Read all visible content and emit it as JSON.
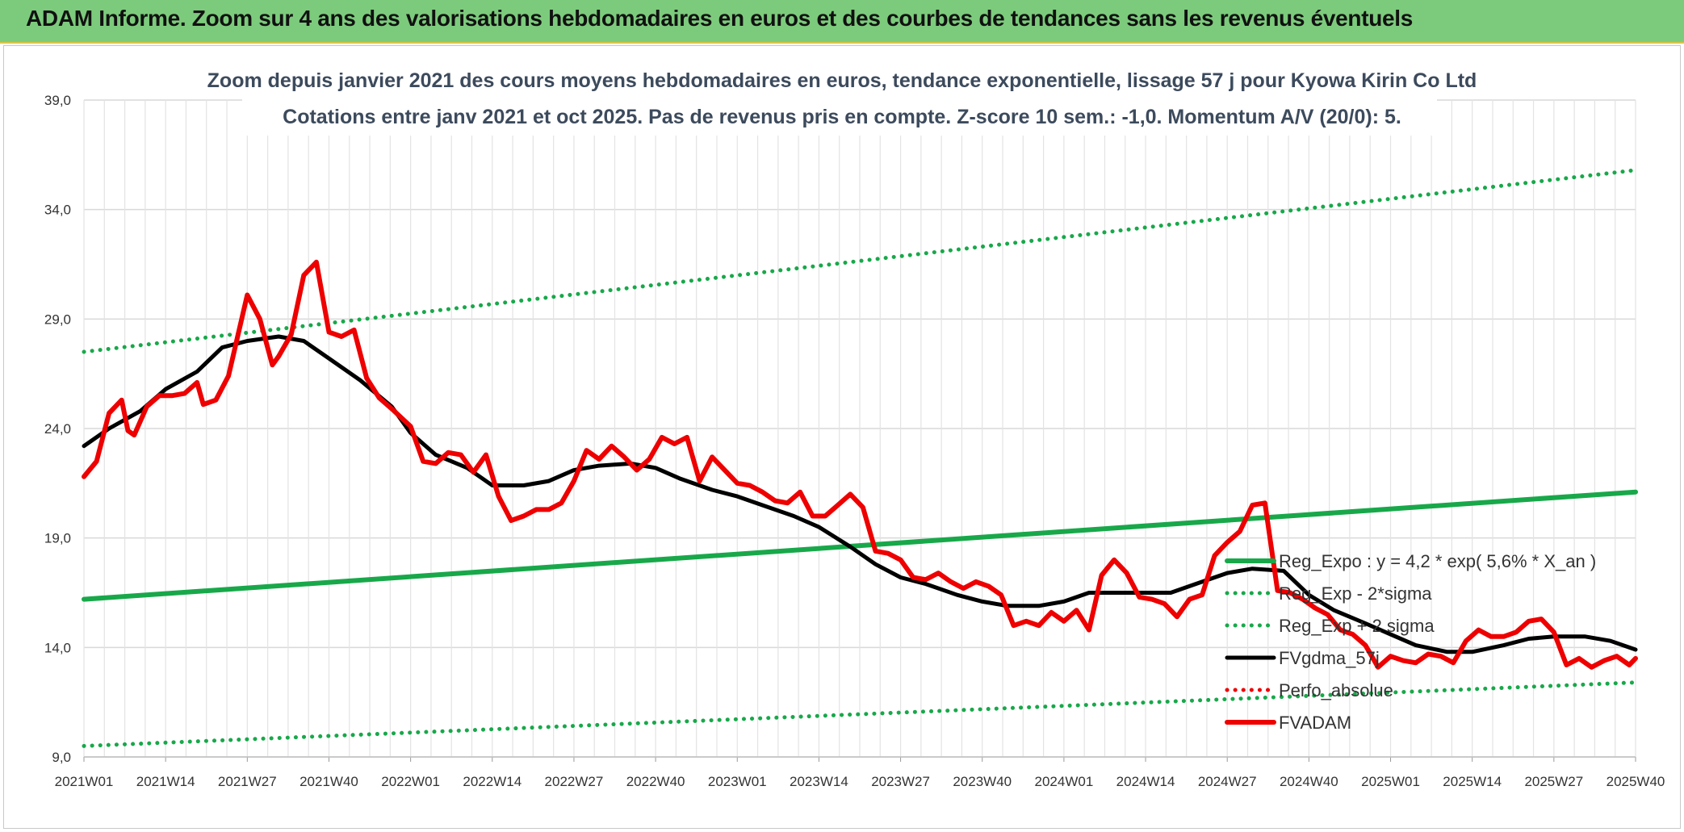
{
  "banner": {
    "title": "ADAM Informe. Zoom sur 4 ans des valorisations hebdomadaires en euros et des courbes de tendances sans les revenus éventuels"
  },
  "colors": {
    "banner_bg": "#7ccb7c",
    "trend_green": "#18a84a",
    "price_red": "#ee0000",
    "smooth_black": "#000000",
    "perfo_red": "#ee0000"
  },
  "chart_data": {
    "type": "line",
    "title": "Zoom depuis janvier 2021 des cours moyens hebdomadaires en euros, tendance exponentielle, lissage 57 j pour Kyowa Kirin Co Ltd",
    "subtitle": "Cotations entre janv 2021 et oct 2025. Pas de revenus pris en compte. Z-score 10 sem.: -1,0. Momentum A/V (20/0): 5.",
    "ylim": [
      9,
      39
    ],
    "yticks": [
      "39,0",
      "34,0",
      "29,0",
      "24,0",
      "19,0",
      "14,0",
      "9,0"
    ],
    "ytick_values": [
      39,
      34,
      29,
      24,
      19,
      14,
      9
    ],
    "xticks": [
      "2021W01",
      "2021W14",
      "2021W27",
      "2021W40",
      "2022W01",
      "2022W14",
      "2022W27",
      "2022W40",
      "2023W01",
      "2023W14",
      "2023W27",
      "2023W40",
      "2024W01",
      "2024W14",
      "2024W27",
      "2024W40",
      "2025W01",
      "2025W14",
      "2025W27",
      "2025W40"
    ],
    "grid": true,
    "legend_position": "right",
    "series": [
      {
        "name": "Reg_Expo : y = 4,2 * exp( 5,6% *  X_an )",
        "style": "solid-thick",
        "color": "#18a84a",
        "x": [
          "2021W01",
          "2025W40"
        ],
        "y": [
          16.2,
          21.1
        ]
      },
      {
        "name": "Reg_Exp - 2*sigma",
        "style": "dotted",
        "color": "#18a84a",
        "x": [
          "2021W01",
          "2025W40"
        ],
        "y": [
          9.5,
          12.4
        ]
      },
      {
        "name": "Reg_Exp + 2 sigma",
        "style": "dotted",
        "color": "#18a84a",
        "x": [
          "2021W01",
          "2025W40"
        ],
        "y": [
          27.5,
          35.8
        ]
      },
      {
        "name": "FVgdma_57j",
        "style": "solid",
        "color": "#000000",
        "x": [
          "2021W01",
          "2021W05",
          "2021W10",
          "2021W14",
          "2021W19",
          "2021W23",
          "2021W27",
          "2021W32",
          "2021W36",
          "2021W40",
          "2021W45",
          "2021W50",
          "2022W01",
          "2022W05",
          "2022W10",
          "2022W14",
          "2022W19",
          "2022W23",
          "2022W27",
          "2022W31",
          "2022W36",
          "2022W40",
          "2022W44",
          "2022W49",
          "2023W01",
          "2023W05",
          "2023W10",
          "2023W14",
          "2023W19",
          "2023W23",
          "2023W27",
          "2023W31",
          "2023W36",
          "2023W40",
          "2023W44",
          "2023W49",
          "2024W01",
          "2024W05",
          "2024W10",
          "2024W14",
          "2024W18",
          "2024W23",
          "2024W27",
          "2024W31",
          "2024W36",
          "2024W40",
          "2024W44",
          "2024W49",
          "2025W01",
          "2025W05",
          "2025W10",
          "2025W14",
          "2025W19",
          "2025W23",
          "2025W27",
          "2025W32",
          "2025W36",
          "2025W40"
        ],
        "y": [
          23.2,
          24.0,
          24.8,
          25.8,
          26.6,
          27.7,
          28.0,
          28.2,
          28.0,
          27.2,
          26.2,
          25.0,
          23.8,
          22.8,
          22.2,
          21.4,
          21.4,
          21.6,
          22.1,
          22.3,
          22.4,
          22.2,
          21.7,
          21.2,
          20.9,
          20.5,
          20.0,
          19.5,
          18.6,
          17.8,
          17.2,
          16.9,
          16.4,
          16.1,
          15.9,
          15.9,
          16.1,
          16.5,
          16.5,
          16.5,
          16.5,
          17.0,
          17.4,
          17.6,
          17.5,
          16.4,
          15.7,
          15.1,
          14.6,
          14.1,
          13.8,
          13.8,
          14.1,
          14.4,
          14.5,
          14.5,
          14.3,
          13.9
        ]
      },
      {
        "name": "Perfo_absolue",
        "style": "dotted",
        "color": "#ee0000",
        "x": [],
        "y": []
      },
      {
        "name": "FVADAM",
        "style": "solid-thick",
        "color": "#ee0000",
        "x": [
          "2021W01",
          "2021W03",
          "2021W05",
          "2021W07",
          "2021W08",
          "2021W09",
          "2021W11",
          "2021W13",
          "2021W15",
          "2021W17",
          "2021W19",
          "2021W20",
          "2021W22",
          "2021W24",
          "2021W27",
          "2021W29",
          "2021W31",
          "2021W32",
          "2021W34",
          "2021W36",
          "2021W38",
          "2021W40",
          "2021W42",
          "2021W44",
          "2021W46",
          "2021W48",
          "2021W50",
          "2022W01",
          "2022W03",
          "2022W05",
          "2022W07",
          "2022W09",
          "2022W11",
          "2022W13",
          "2022W15",
          "2022W17",
          "2022W19",
          "2022W21",
          "2022W23",
          "2022W25",
          "2022W27",
          "2022W29",
          "2022W31",
          "2022W33",
          "2022W35",
          "2022W37",
          "2022W39",
          "2022W41",
          "2022W43",
          "2022W45",
          "2022W47",
          "2022W49",
          "2023W01",
          "2023W03",
          "2023W05",
          "2023W07",
          "2023W09",
          "2023W11",
          "2023W13",
          "2023W15",
          "2023W17",
          "2023W19",
          "2023W21",
          "2023W23",
          "2023W25",
          "2023W27",
          "2023W29",
          "2023W31",
          "2023W33",
          "2023W35",
          "2023W37",
          "2023W39",
          "2023W41",
          "2023W43",
          "2023W45",
          "2023W47",
          "2023W49",
          "2023W51",
          "2024W01",
          "2024W03",
          "2024W05",
          "2024W07",
          "2024W09",
          "2024W11",
          "2024W13",
          "2024W15",
          "2024W17",
          "2024W19",
          "2024W21",
          "2024W23",
          "2024W25",
          "2024W27",
          "2024W29",
          "2024W31",
          "2024W33",
          "2024W35",
          "2024W37",
          "2024W39",
          "2024W41",
          "2024W43",
          "2024W45",
          "2024W47",
          "2024W49",
          "2024W51",
          "2025W01",
          "2025W03",
          "2025W05",
          "2025W07",
          "2025W09",
          "2025W11",
          "2025W13",
          "2025W15",
          "2025W17",
          "2025W19",
          "2025W21",
          "2025W23",
          "2025W25",
          "2025W27",
          "2025W29",
          "2025W31",
          "2025W33",
          "2025W35",
          "2025W37",
          "2025W39",
          "2025W40"
        ],
        "y": [
          21.8,
          22.5,
          24.7,
          25.3,
          23.9,
          23.7,
          25.0,
          25.5,
          25.5,
          25.6,
          26.1,
          25.1,
          25.3,
          26.4,
          30.1,
          29.0,
          26.9,
          27.3,
          28.3,
          31.0,
          31.6,
          28.4,
          28.2,
          28.5,
          26.3,
          25.4,
          24.9,
          24.1,
          22.5,
          22.4,
          22.9,
          22.8,
          22.0,
          22.8,
          20.9,
          19.8,
          20.0,
          20.3,
          20.3,
          20.6,
          21.6,
          23.0,
          22.6,
          23.2,
          22.7,
          22.1,
          22.6,
          23.6,
          23.3,
          23.6,
          21.6,
          22.7,
          21.5,
          21.4,
          21.1,
          20.7,
          20.6,
          21.1,
          20.0,
          20.0,
          20.5,
          21.0,
          20.4,
          18.4,
          18.3,
          18.0,
          17.2,
          17.1,
          17.4,
          17.0,
          16.7,
          17.0,
          16.8,
          16.4,
          15.0,
          15.2,
          15.0,
          15.6,
          15.2,
          15.7,
          14.8,
          17.3,
          18.0,
          17.4,
          16.3,
          16.2,
          16.0,
          15.4,
          16.2,
          16.4,
          18.2,
          18.8,
          19.3,
          20.5,
          20.6,
          16.6,
          16.5,
          16.2,
          15.8,
          15.5,
          14.8,
          14.6,
          14.1,
          13.1,
          13.6,
          13.4,
          13.3,
          13.7,
          13.6,
          13.3,
          14.3,
          14.8,
          14.5,
          14.5,
          14.7,
          15.2,
          15.3,
          14.7,
          13.2,
          13.5,
          13.1,
          13.4,
          13.6,
          13.2,
          13.5
        ]
      }
    ]
  }
}
